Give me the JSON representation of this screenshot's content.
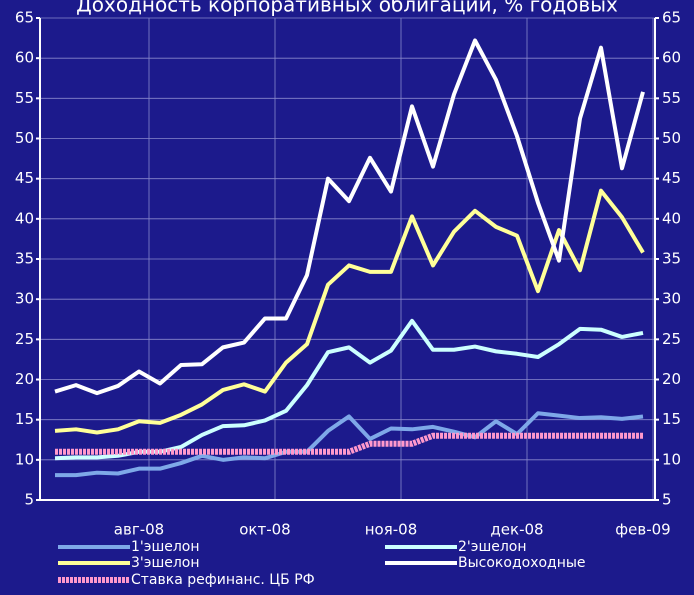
{
  "chart_data": {
    "type": "line",
    "title": "Доходность корпоративных облигаций, % годовых",
    "categories": [
      null,
      null,
      null,
      null,
      "авг-08",
      null,
      null,
      null,
      null,
      null,
      "окт-08",
      null,
      null,
      null,
      null,
      null,
      "ноя-08",
      null,
      null,
      null,
      null,
      null,
      "дек-08",
      null,
      null,
      null,
      null,
      null,
      "фев-09"
    ],
    "series": [
      {
        "name": "1'эшелон",
        "color": "#7ea8e8",
        "values": [
          8.1,
          8.1,
          8.4,
          8.3,
          8.9,
          8.9,
          9.6,
          10.5,
          10,
          10.3,
          10.2,
          11,
          11,
          13.6,
          15.4,
          12.6,
          13.9,
          13.8,
          14.1,
          13.5,
          12.8,
          14.8,
          13.2,
          15.8,
          15.5,
          15.2,
          15.3,
          15.1,
          15.4
        ]
      },
      {
        "name": "2'эшелон",
        "color": "#ccffff",
        "values": [
          10.2,
          10.3,
          10.3,
          10.5,
          11,
          11,
          11.6,
          13.1,
          14.2,
          14.3,
          14.9,
          16.1,
          19.3,
          23.4,
          24,
          22.1,
          23.6,
          27.3,
          23.7,
          23.7,
          24.1,
          23.5,
          23.2,
          22.8,
          24.4,
          26.3,
          26.2,
          25.3,
          25.8
        ]
      },
      {
        "name": "3'эшелон",
        "color": "#ffff99",
        "values": [
          13.6,
          13.8,
          13.4,
          13.8,
          14.8,
          14.6,
          15.6,
          16.9,
          18.7,
          19.4,
          18.5,
          22.1,
          24.4,
          31.8,
          34.2,
          33.4,
          33.4,
          40.3,
          34.2,
          38.4,
          41,
          39,
          37.9,
          31,
          38.6,
          33.6,
          43.5,
          40.2,
          35.8
        ]
      },
      {
        "name": "Высокодоходные",
        "color": "#ffffff",
        "values": [
          18.5,
          19.3,
          18.3,
          19.2,
          21,
          19.5,
          21.8,
          21.9,
          24,
          24.6,
          27.6,
          27.6,
          33,
          45,
          42.2,
          47.6,
          43.4,
          54,
          46.5,
          55.5,
          62.2,
          57.3,
          50.3,
          42,
          34.8,
          52.5,
          61.3,
          46.3,
          55.8
        ]
      },
      {
        "name": "Ставка рефинанс. ЦБ РФ",
        "color": "#ff99cc",
        "values": [
          11,
          11,
          11,
          11,
          11,
          11,
          11,
          11,
          11,
          11,
          11,
          11,
          11,
          11,
          11,
          12,
          12,
          12,
          13,
          13,
          13,
          13,
          13,
          13,
          13,
          13,
          13,
          13,
          13
        ]
      }
    ],
    "ylim": [
      5,
      65
    ],
    "yticks": [
      5,
      10,
      15,
      20,
      25,
      30,
      35,
      40,
      45,
      50,
      55,
      60,
      65
    ],
    "y2lim": [
      5,
      65
    ],
    "y2ticks": [
      5,
      10,
      15,
      20,
      25,
      30,
      35,
      40,
      45,
      50,
      55,
      60,
      65
    ],
    "grid": true
  }
}
